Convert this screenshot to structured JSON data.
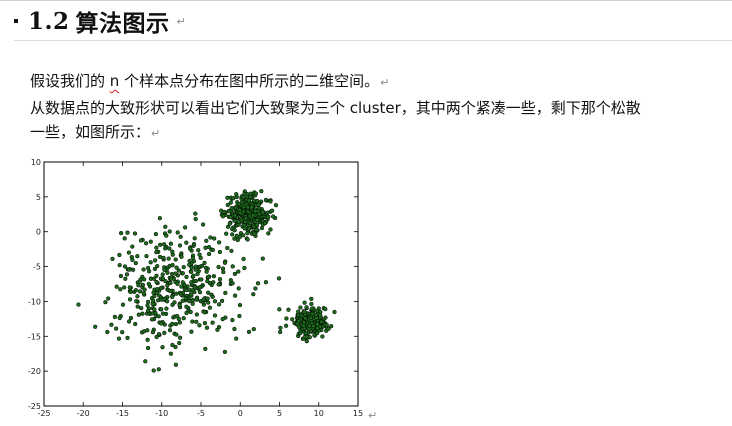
{
  "heading": {
    "number": "1.2",
    "title": "算法图示"
  },
  "paragraphs": {
    "p1_before": "假设我们的 ",
    "p1_var": "n",
    "p1_after": " 个样本点分布在图中所示的二维空间。",
    "p2": "从数据点的大致形状可以看出它们大致聚为三个 cluster，其中两个紧凑一些，剩下那个松散",
    "p3": "一些，如图所示："
  },
  "pilcrow": "↵",
  "chart_data": {
    "type": "scatter",
    "title": "",
    "xlabel": "",
    "ylabel": "",
    "xlim": [
      -25,
      15
    ],
    "ylim": [
      -25,
      10
    ],
    "xticks": [
      -25,
      -20,
      -15,
      -10,
      -5,
      0,
      5,
      10,
      15
    ],
    "yticks": [
      10,
      5,
      0,
      -5,
      -10,
      -15,
      -20,
      -25
    ],
    "grid": false,
    "point_color": "#1d6b1d",
    "point_edge": "#000000",
    "clusters": [
      {
        "center": [
          -8,
          -8
        ],
        "spread": 4.2,
        "count": 420,
        "description_visible": false
      },
      {
        "center": [
          1,
          2.5
        ],
        "spread": 1.4,
        "count": 320
      },
      {
        "center": [
          9,
          -13
        ],
        "spread": 1.1,
        "count": 220
      }
    ]
  }
}
